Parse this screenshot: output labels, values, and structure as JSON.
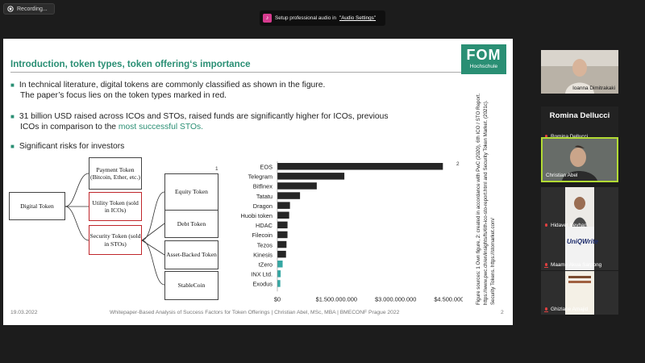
{
  "recording": {
    "label": "Recording..."
  },
  "audio_banner": {
    "text": "Setup professional audio in",
    "link": "\"Audio Settings\""
  },
  "slide": {
    "title": "Introduction, token types, token offering‘s importance",
    "logo": {
      "main": "FOM",
      "sub": "Hochschule"
    },
    "bullets": [
      {
        "lines": [
          "In technical literature, digital tokens are commonly classified as shown in the figure.",
          "The paper’s focus lies on the token types marked in red."
        ]
      },
      {
        "lines": [
          "31 billion USD raised across ICOs and STOs, raised funds are significantly higher for ICOs, previous"
        ],
        "line2_pre": "ICOs in comparison to the ",
        "line2_highlight": "most successful STOs."
      },
      {
        "lines": [
          "Significant risks for investors"
        ]
      }
    ],
    "diagram": {
      "digital_token": "Digital Token",
      "payment_token": "Payment Token (Bitcoin, Ether, etc.)",
      "utility_token": "Utility Token (sold in ICOs)",
      "security_token": "Security Token (sold in STOs)",
      "equity_token": "Equity Token",
      "debt_token": "Debt Token",
      "asset_backed_token": "Asset-Backed Token",
      "stablecoin": "StableCoin",
      "ref_1": "1"
    },
    "ref_2": "2",
    "sources_note": "Figure sources: 1 Own figure, 2: created in accordance with PwC (2020), 6th ICO / STO Report. https://www.pwc.ch/en/insights/fs/6th-ico-sto-report.html and Security Token Market. (2021c). Security Tokens. https://stomarket.com/",
    "footer": {
      "date": "19.03.2022",
      "center": "Whitepaper-Based Analysis of Success Factors for Token Offerings | Christian Abel, MSc, MBA | BMECONF Prague 2022",
      "page": "2"
    }
  },
  "chart_data": {
    "type": "bar",
    "orientation": "horizontal",
    "categories": [
      "EOS",
      "Telegram",
      "Bitfinex",
      "Tatatu",
      "Dragon",
      "Huobi token",
      "HDAC",
      "Filecoin",
      "Tezos",
      "Kinesis",
      "tZero",
      "INX Ltd.",
      "Exodus"
    ],
    "values": [
      4200000000,
      1700000000,
      1000000000,
      575000000,
      320000000,
      300000000,
      258000000,
      257000000,
      232000000,
      220000000,
      134000000,
      84000000,
      75000000
    ],
    "series_colors": [
      "#262626",
      "#262626",
      "#262626",
      "#262626",
      "#262626",
      "#262626",
      "#262626",
      "#262626",
      "#262626",
      "#262626",
      "#35a7a3",
      "#35a7a3",
      "#35a7a3"
    ],
    "xlim": [
      0,
      4500000000
    ],
    "xticks": [
      0,
      1500000000,
      3000000000,
      4500000000
    ],
    "xtick_labels": [
      "$0",
      "$1.500.000.000",
      "$3.000.000.000",
      "$4.500.000.000"
    ],
    "grid": false,
    "title": "",
    "xlabel": "",
    "ylabel": ""
  },
  "participants": [
    {
      "name": "Ioanna Dimitrakaki"
    },
    {
      "name": "Romina Dellucci",
      "display": "Romina Dellucci"
    },
    {
      "name": "Christian Abel"
    },
    {
      "name": "Hidayet Beyhan"
    },
    {
      "name": "Maame Akua Sarpong",
      "thumb_text": "UniQWrite"
    },
    {
      "name": "Ghizlane Amajid"
    }
  ]
}
